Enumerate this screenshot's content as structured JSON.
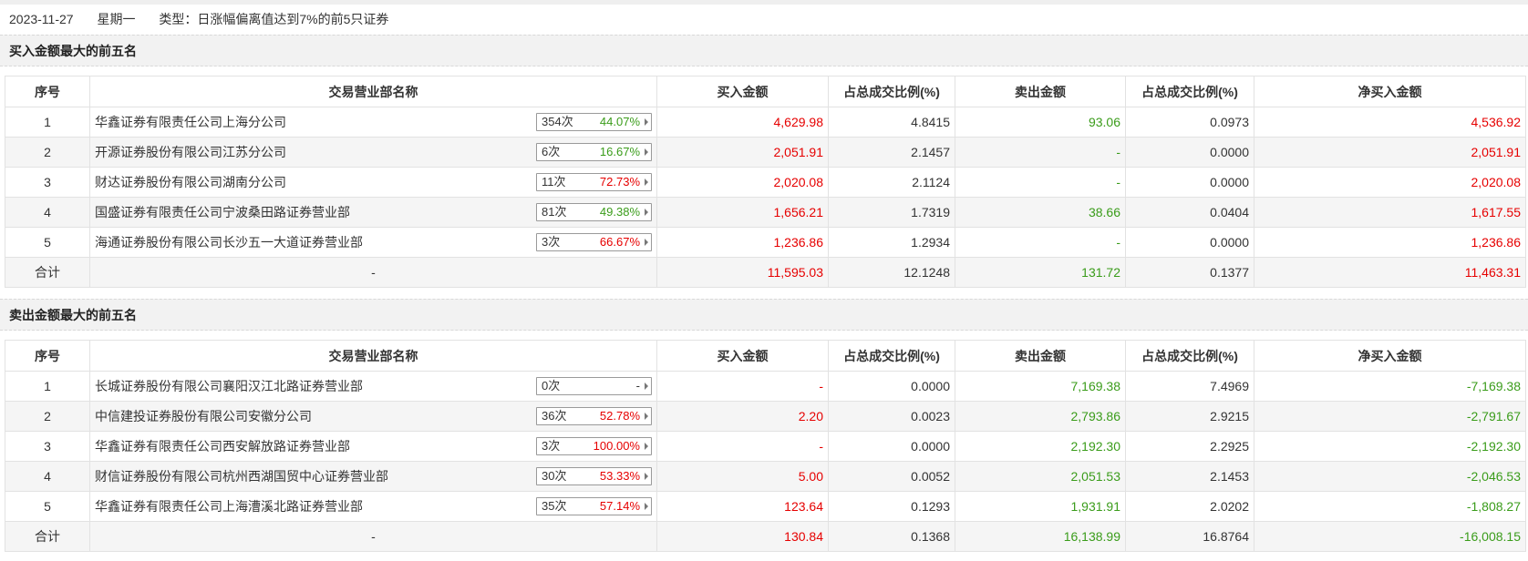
{
  "meta": {
    "date": "2023-11-27",
    "weekday": "星期一",
    "type": "类型：日涨幅偏离值达到7%的前5只证券"
  },
  "columns": [
    "序号",
    "交易营业部名称",
    "买入金额",
    "占总成交比例(%)",
    "卖出金额",
    "占总成交比例(%)",
    "净买入金额"
  ],
  "colors": {
    "red": "#e60000",
    "green": "#3a9c1a"
  },
  "buy_section": {
    "title": "买入金额最大的前五名",
    "rows": [
      {
        "idx": "1",
        "name": "华鑫证券有限责任公司上海分公司",
        "count": "354次",
        "pct": "44.07%",
        "pct_color": "green",
        "buy": "4,629.98",
        "buy_ratio": "4.8415",
        "sell": "93.06",
        "sell_ratio": "0.0973",
        "net": "4,536.92",
        "net_color": "red"
      },
      {
        "idx": "2",
        "name": "开源证券股份有限公司江苏分公司",
        "count": "6次",
        "pct": "16.67%",
        "pct_color": "green",
        "buy": "2,051.91",
        "buy_ratio": "2.1457",
        "sell": "-",
        "sell_ratio": "0.0000",
        "net": "2,051.91",
        "net_color": "red"
      },
      {
        "idx": "3",
        "name": "财达证券股份有限公司湖南分公司",
        "count": "11次",
        "pct": "72.73%",
        "pct_color": "red",
        "buy": "2,020.08",
        "buy_ratio": "2.1124",
        "sell": "-",
        "sell_ratio": "0.0000",
        "net": "2,020.08",
        "net_color": "red"
      },
      {
        "idx": "4",
        "name": "国盛证券有限责任公司宁波桑田路证券营业部",
        "count": "81次",
        "pct": "49.38%",
        "pct_color": "green",
        "buy": "1,656.21",
        "buy_ratio": "1.7319",
        "sell": "38.66",
        "sell_ratio": "0.0404",
        "net": "1,617.55",
        "net_color": "red"
      },
      {
        "idx": "5",
        "name": "海通证券股份有限公司长沙五一大道证券营业部",
        "count": "3次",
        "pct": "66.67%",
        "pct_color": "red",
        "buy": "1,236.86",
        "buy_ratio": "1.2934",
        "sell": "-",
        "sell_ratio": "0.0000",
        "net": "1,236.86",
        "net_color": "red"
      }
    ],
    "total": {
      "label": "合计",
      "name": "-",
      "buy": "11,595.03",
      "buy_ratio": "12.1248",
      "sell": "131.72",
      "sell_ratio": "0.1377",
      "net": "11,463.31",
      "net_color": "red"
    }
  },
  "sell_section": {
    "title": "卖出金额最大的前五名",
    "rows": [
      {
        "idx": "1",
        "name": "长城证券股份有限公司襄阳汉江北路证券营业部",
        "count": "0次",
        "pct": "-",
        "pct_color": "dash",
        "buy": "-",
        "buy_ratio": "0.0000",
        "sell": "7,169.38",
        "sell_ratio": "7.4969",
        "net": "-7,169.38",
        "net_color": "green"
      },
      {
        "idx": "2",
        "name": "中信建投证券股份有限公司安徽分公司",
        "count": "36次",
        "pct": "52.78%",
        "pct_color": "red",
        "buy": "2.20",
        "buy_ratio": "0.0023",
        "sell": "2,793.86",
        "sell_ratio": "2.9215",
        "net": "-2,791.67",
        "net_color": "green"
      },
      {
        "idx": "3",
        "name": "华鑫证券有限责任公司西安解放路证券营业部",
        "count": "3次",
        "pct": "100.00%",
        "pct_color": "red",
        "buy": "-",
        "buy_ratio": "0.0000",
        "sell": "2,192.30",
        "sell_ratio": "2.2925",
        "net": "-2,192.30",
        "net_color": "green"
      },
      {
        "idx": "4",
        "name": "财信证券股份有限公司杭州西湖国贸中心证券营业部",
        "count": "30次",
        "pct": "53.33%",
        "pct_color": "red",
        "buy": "5.00",
        "buy_ratio": "0.0052",
        "sell": "2,051.53",
        "sell_ratio": "2.1453",
        "net": "-2,046.53",
        "net_color": "green"
      },
      {
        "idx": "5",
        "name": "华鑫证券有限责任公司上海漕溪北路证券营业部",
        "count": "35次",
        "pct": "57.14%",
        "pct_color": "red",
        "buy": "123.64",
        "buy_ratio": "0.1293",
        "sell": "1,931.91",
        "sell_ratio": "2.0202",
        "net": "-1,808.27",
        "net_color": "green"
      }
    ],
    "total": {
      "label": "合计",
      "name": "-",
      "buy": "130.84",
      "buy_ratio": "0.1368",
      "sell": "16,138.99",
      "sell_ratio": "16.8764",
      "net": "-16,008.15",
      "net_color": "green"
    }
  }
}
